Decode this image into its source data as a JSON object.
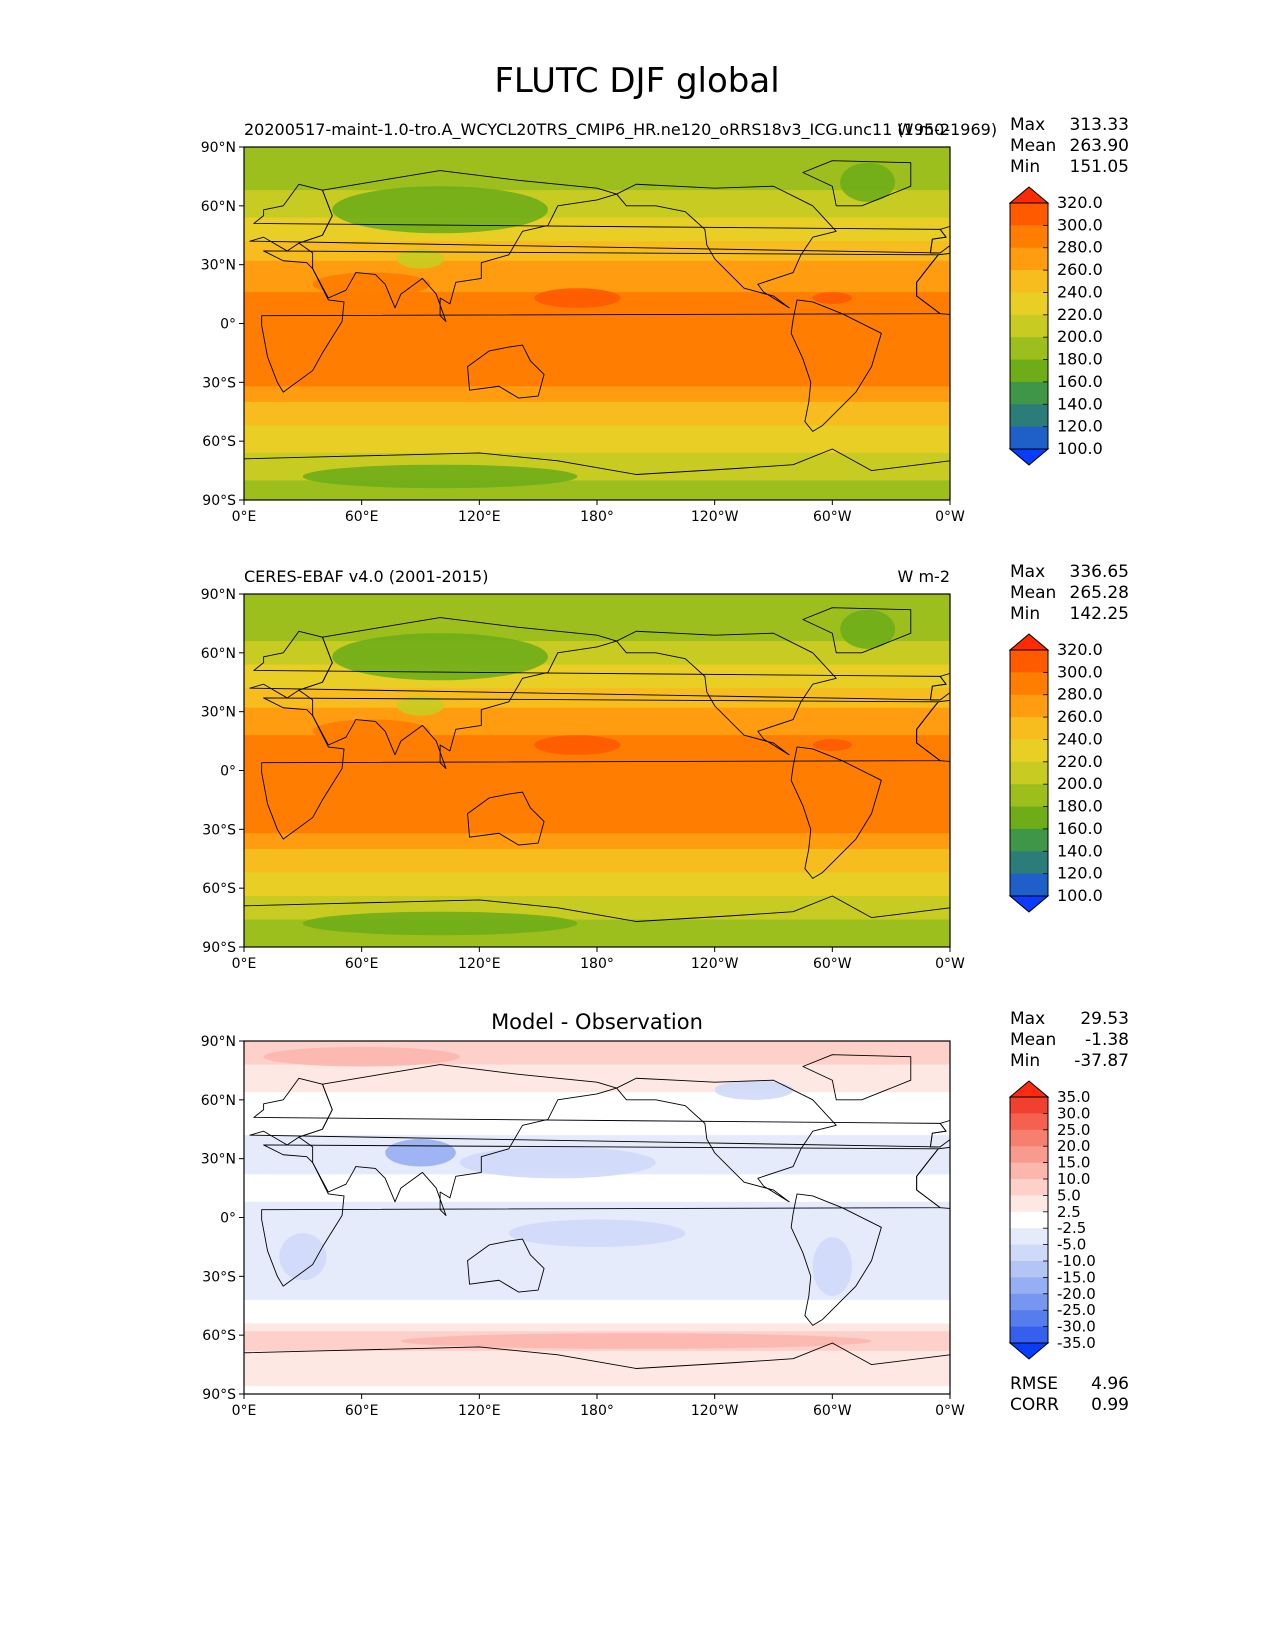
{
  "figure": {
    "title": "FLUTC DJF global"
  },
  "lat_ticks": [
    "90°N",
    "60°N",
    "30°N",
    "0°",
    "30°S",
    "60°S",
    "90°S"
  ],
  "lon_ticks": [
    "0°E",
    "60°E",
    "120°E",
    "180°",
    "120°W",
    "60°W",
    "0°W"
  ],
  "panels": [
    {
      "left_title": "20200517-maint-1.0-tro.A_WCYCL20TRS_CMIP6_HR.ne120_oRRS18v3_ICG.unc11 (1950-1969)",
      "center_title": "",
      "units": "W m-2",
      "stats": {
        "max_label": "Max",
        "max": "313.33",
        "mean_label": "Mean",
        "mean": "263.90",
        "min_label": "Min",
        "min": "151.05"
      },
      "colorbar": {
        "labels": [
          "320.0",
          "300.0",
          "280.0",
          "260.0",
          "240.0",
          "220.0",
          "200.0",
          "180.0",
          "160.0",
          "140.0",
          "120.0",
          "100.0"
        ],
        "colors": [
          "#ff2a00",
          "#ff5a00",
          "#ff7d00",
          "#ff9c10",
          "#f7bd1e",
          "#e9cf25",
          "#c8cc22",
          "#9dbf1e",
          "#6fad18",
          "#3f9648",
          "#2c7d7a",
          "#1e60c8",
          "#0a3cff"
        ]
      }
    },
    {
      "left_title": "CERES-EBAF v4.0 (2001-2015)",
      "center_title": "",
      "units": "W m-2",
      "stats": {
        "max_label": "Max",
        "max": "336.65",
        "mean_label": "Mean",
        "mean": "265.28",
        "min_label": "Min",
        "min": "142.25"
      },
      "colorbar": {
        "labels": [
          "320.0",
          "300.0",
          "280.0",
          "260.0",
          "240.0",
          "220.0",
          "200.0",
          "180.0",
          "160.0",
          "140.0",
          "120.0",
          "100.0"
        ],
        "colors": [
          "#ff2a00",
          "#ff5a00",
          "#ff7d00",
          "#ff9c10",
          "#f7bd1e",
          "#e9cf25",
          "#c8cc22",
          "#9dbf1e",
          "#6fad18",
          "#3f9648",
          "#2c7d7a",
          "#1e60c8",
          "#0a3cff"
        ]
      }
    },
    {
      "left_title": "",
      "center_title": "Model - Observation",
      "units": "",
      "stats": {
        "max_label": "Max",
        "max": "29.53",
        "mean_label": "Mean",
        "mean": "-1.38",
        "min_label": "Min",
        "min": "-37.87"
      },
      "colorbar": {
        "labels": [
          "35.0",
          "30.0",
          "25.0",
          "20.0",
          "15.0",
          "10.0",
          "5.0",
          "2.5",
          "-2.5",
          "-5.0",
          "-10.0",
          "-15.0",
          "-20.0",
          "-25.0",
          "-30.0",
          "-35.0"
        ],
        "colors": [
          "#ff2a10",
          "#f04030",
          "#f56050",
          "#f77f70",
          "#f99a8e",
          "#fbb6ae",
          "#fdd0ca",
          "#fde8e4",
          "#ffffff",
          "#e6ebfb",
          "#cfd9f8",
          "#b4c4f5",
          "#96aef2",
          "#7796ef",
          "#577cec",
          "#3560ee",
          "#0a3cff"
        ]
      },
      "metrics": {
        "rmse_label": "RMSE",
        "rmse": "4.96",
        "corr_label": "CORR",
        "corr": "0.99"
      }
    }
  ],
  "chart_data": [
    {
      "type": "heatmap",
      "title": "20200517-maint-1.0-tro.A_WCYCL20TRS_CMIP6_HR.ne120_oRRS18v3_ICG.unc11 (1950-1969)",
      "units": "W m-2",
      "x_range": [
        0,
        360
      ],
      "y_range": [
        -90,
        90
      ],
      "xticks": [
        "0°E",
        "60°E",
        "120°E",
        "180°",
        "120°W",
        "60°W",
        "0°W"
      ],
      "yticks": [
        "90°N",
        "60°N",
        "30°N",
        "0°",
        "30°S",
        "60°S",
        "90°S"
      ],
      "levels": [
        100,
        120,
        140,
        160,
        180,
        200,
        220,
        240,
        260,
        280,
        300,
        320
      ],
      "stats": {
        "max": 313.33,
        "mean": 263.9,
        "min": 151.05
      },
      "zonal_profile": [
        [
          90,
          185
        ],
        [
          75,
          190
        ],
        [
          60,
          212
        ],
        [
          45,
          232
        ],
        [
          30,
          262
        ],
        [
          15,
          282
        ],
        [
          0,
          288
        ],
        [
          -15,
          292
        ],
        [
          -30,
          284
        ],
        [
          -45,
          248
        ],
        [
          -60,
          228
        ],
        [
          -75,
          205
        ],
        [
          -90,
          190
        ]
      ]
    },
    {
      "type": "heatmap",
      "title": "CERES-EBAF v4.0 (2001-2015)",
      "units": "W m-2",
      "x_range": [
        0,
        360
      ],
      "y_range": [
        -90,
        90
      ],
      "xticks": [
        "0°E",
        "60°E",
        "120°E",
        "180°",
        "120°W",
        "60°W",
        "0°W"
      ],
      "yticks": [
        "90°N",
        "60°N",
        "30°N",
        "0°",
        "30°S",
        "60°S",
        "90°S"
      ],
      "levels": [
        100,
        120,
        140,
        160,
        180,
        200,
        220,
        240,
        260,
        280,
        300,
        320
      ],
      "stats": {
        "max": 336.65,
        "mean": 265.28,
        "min": 142.25
      },
      "zonal_profile": [
        [
          90,
          182
        ],
        [
          75,
          188
        ],
        [
          60,
          210
        ],
        [
          45,
          232
        ],
        [
          30,
          264
        ],
        [
          15,
          285
        ],
        [
          0,
          290
        ],
        [
          -15,
          294
        ],
        [
          -30,
          286
        ],
        [
          -45,
          250
        ],
        [
          -60,
          228
        ],
        [
          -75,
          200
        ],
        [
          -90,
          188
        ]
      ]
    },
    {
      "type": "heatmap",
      "title": "Model - Observation",
      "x_range": [
        0,
        360
      ],
      "y_range": [
        -90,
        90
      ],
      "xticks": [
        "0°E",
        "60°E",
        "120°E",
        "180°",
        "120°W",
        "60°W",
        "0°W"
      ],
      "yticks": [
        "90°N",
        "60°N",
        "30°N",
        "0°",
        "30°S",
        "60°S",
        "90°S"
      ],
      "levels": [
        -35,
        -30,
        -25,
        -20,
        -15,
        -10,
        -5,
        -2.5,
        2.5,
        5,
        10,
        15,
        20,
        25,
        30,
        35
      ],
      "stats": {
        "max": 29.53,
        "mean": -1.38,
        "min": -37.87,
        "rmse": 4.96,
        "corr": 0.99
      },
      "zonal_profile": [
        [
          90,
          8
        ],
        [
          75,
          4
        ],
        [
          60,
          2
        ],
        [
          45,
          -2
        ],
        [
          30,
          -4
        ],
        [
          15,
          -1
        ],
        [
          0,
          -4
        ],
        [
          -15,
          -5
        ],
        [
          -30,
          -4
        ],
        [
          -45,
          -2
        ],
        [
          -60,
          6
        ],
        [
          -75,
          4
        ],
        [
          -90,
          2
        ]
      ]
    }
  ]
}
